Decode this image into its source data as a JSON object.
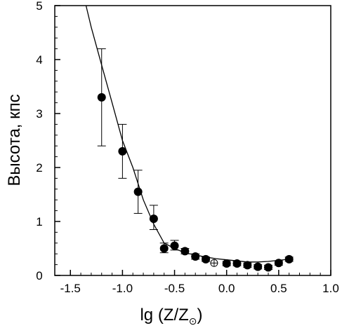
{
  "chart_data": {
    "type": "scatter",
    "title": "",
    "xlabel": "lg (Z/Z",
    "xlabel_subscript": "⊙",
    "xlabel_suffix": ")",
    "ylabel": "Высота, кпс",
    "xlim": [
      -1.65,
      1.0
    ],
    "ylim": [
      0,
      5
    ],
    "xticks": [
      {
        "value": -1.5,
        "label": "-1.5"
      },
      {
        "value": -1.0,
        "label": "-1.0"
      },
      {
        "value": -0.5,
        "label": "-0.5"
      },
      {
        "value": 0.0,
        "label": "0.0"
      },
      {
        "value": 0.5,
        "label": "0.5"
      },
      {
        "value": 1.0,
        "label": "1.0"
      }
    ],
    "yticks": [
      {
        "value": 0,
        "label": "0"
      },
      {
        "value": 1,
        "label": "1"
      },
      {
        "value": 2,
        "label": "2"
      },
      {
        "value": 3,
        "label": "3"
      },
      {
        "value": 4,
        "label": "4"
      },
      {
        "value": 5,
        "label": "5"
      }
    ],
    "grid": false,
    "series": [
      {
        "style": "filled-circle-with-error-bars",
        "points": [
          {
            "x": -1.2,
            "y": 3.3,
            "ylo": 2.4,
            "yhi": 4.2
          },
          {
            "x": -1.0,
            "y": 2.3,
            "ylo": 1.8,
            "yhi": 2.8
          },
          {
            "x": -0.85,
            "y": 1.55,
            "ylo": 1.15,
            "yhi": 1.95
          },
          {
            "x": -0.7,
            "y": 1.05,
            "ylo": 0.85,
            "yhi": 1.3
          },
          {
            "x": -0.6,
            "y": 0.5,
            "ylo": 0.42,
            "yhi": 0.6
          },
          {
            "x": -0.5,
            "y": 0.55,
            "ylo": 0.47,
            "yhi": 0.65
          },
          {
            "x": -0.4,
            "y": 0.45,
            "ylo": 0.4,
            "yhi": 0.5
          },
          {
            "x": -0.3,
            "y": 0.35,
            "ylo": 0.3,
            "yhi": 0.4
          },
          {
            "x": -0.2,
            "y": 0.3,
            "ylo": 0.26,
            "yhi": 0.34
          },
          {
            "x": 0.0,
            "y": 0.22,
            "ylo": 0.18,
            "yhi": 0.26
          },
          {
            "x": 0.1,
            "y": 0.22,
            "ylo": 0.18,
            "yhi": 0.26
          },
          {
            "x": 0.2,
            "y": 0.19,
            "ylo": 0.15,
            "yhi": 0.23
          },
          {
            "x": 0.3,
            "y": 0.16,
            "ylo": 0.12,
            "yhi": 0.2
          },
          {
            "x": 0.4,
            "y": 0.15,
            "ylo": 0.11,
            "yhi": 0.19
          },
          {
            "x": 0.5,
            "y": 0.23,
            "ylo": 0.19,
            "yhi": 0.27
          },
          {
            "x": 0.6,
            "y": 0.3,
            "ylo": 0.26,
            "yhi": 0.34
          }
        ]
      },
      {
        "style": "sun-symbol",
        "points": [
          {
            "x": -0.12,
            "y": 0.23
          }
        ]
      },
      {
        "style": "line",
        "points": [
          {
            "x": -1.35,
            "y": 5.0
          },
          {
            "x": -1.3,
            "y": 4.6
          },
          {
            "x": -1.2,
            "y": 3.9
          },
          {
            "x": -1.1,
            "y": 3.2
          },
          {
            "x": -1.0,
            "y": 2.5
          },
          {
            "x": -0.9,
            "y": 2.0
          },
          {
            "x": -0.8,
            "y": 1.4
          },
          {
            "x": -0.7,
            "y": 0.95
          },
          {
            "x": -0.6,
            "y": 0.6
          },
          {
            "x": -0.5,
            "y": 0.5
          },
          {
            "x": -0.4,
            "y": 0.42
          },
          {
            "x": -0.3,
            "y": 0.38
          },
          {
            "x": -0.2,
            "y": 0.34
          },
          {
            "x": -0.1,
            "y": 0.31
          },
          {
            "x": 0.0,
            "y": 0.29
          },
          {
            "x": 0.1,
            "y": 0.27
          },
          {
            "x": 0.2,
            "y": 0.25
          },
          {
            "x": 0.3,
            "y": 0.25
          },
          {
            "x": 0.4,
            "y": 0.26
          },
          {
            "x": 0.5,
            "y": 0.28
          },
          {
            "x": 0.6,
            "y": 0.3
          }
        ]
      }
    ]
  }
}
